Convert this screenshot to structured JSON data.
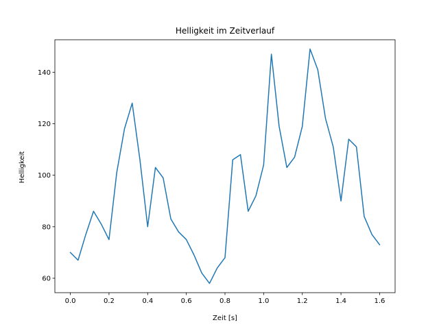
{
  "chart_data": {
    "type": "line",
    "title": "Helligkeit im Zeitverlauf",
    "xlabel": "Zeit [s]",
    "ylabel": "Helligkeit",
    "xlim": [
      -0.08,
      1.68
    ],
    "ylim": [
      54.4,
      152.6
    ],
    "xticks": [
      0.0,
      0.2,
      0.4,
      0.6,
      0.8,
      1.0,
      1.2,
      1.4,
      1.6
    ],
    "xtick_labels": [
      "0.0",
      "0.2",
      "0.4",
      "0.6",
      "0.8",
      "1.0",
      "1.2",
      "1.4",
      "1.6"
    ],
    "yticks": [
      60,
      80,
      100,
      120,
      140
    ],
    "ytick_labels": [
      "60",
      "80",
      "100",
      "120",
      "140"
    ],
    "grid": false,
    "series": [
      {
        "color": "#1f77b4",
        "x": [
          0.0,
          0.04,
          0.08,
          0.12,
          0.16,
          0.2,
          0.24,
          0.28,
          0.32,
          0.36,
          0.4,
          0.44,
          0.48,
          0.52,
          0.56,
          0.6,
          0.64,
          0.68,
          0.72,
          0.76,
          0.8,
          0.84,
          0.88,
          0.92,
          0.96,
          1.0,
          1.04,
          1.08,
          1.12,
          1.16,
          1.2,
          1.24,
          1.28,
          1.32,
          1.36,
          1.4,
          1.44,
          1.48,
          1.52,
          1.56,
          1.6
        ],
        "values": [
          70,
          67,
          77,
          86,
          81,
          75,
          101,
          118,
          128,
          106,
          80,
          103,
          99,
          83,
          78,
          75,
          69,
          62,
          58,
          64,
          68,
          106,
          108,
          86,
          92,
          104,
          147,
          119,
          103,
          107,
          119,
          149,
          141,
          122,
          111,
          90,
          114,
          111,
          84,
          77,
          73
        ]
      }
    ]
  }
}
